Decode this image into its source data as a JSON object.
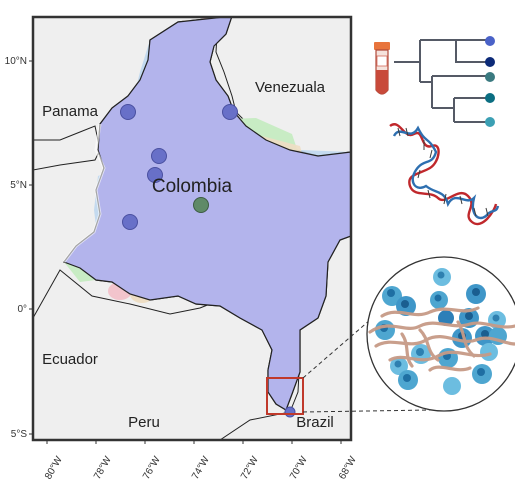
{
  "map": {
    "countries": {
      "panama": "Panama",
      "venezuela": "Venezuala",
      "colombia": "Colombia",
      "ecuador": "Ecuador",
      "peru": "Peru",
      "brazil": "Brazil"
    },
    "lat_ticks": [
      "10°N",
      "5°N",
      "0°",
      "5°S"
    ],
    "lon_ticks": [
      "80°W",
      "78°W",
      "76°W",
      "74°W",
      "72°W",
      "70°W",
      "68°W"
    ],
    "colors": {
      "ocean": "#efefef",
      "land": "#efefef",
      "colombia_base": "#b3b4ec",
      "zone_blue": "#bcd6ee",
      "zone_green": "#c8ecc4",
      "zone_tan": "#eedec4",
      "zone_pink": "#f2c4cc",
      "zone_gray": "#d6d6d6",
      "sample_point": "#6870c8",
      "sample_point_alt": "#5f8a68",
      "highlight_box": "#c0392b"
    },
    "sample_points": 6
  },
  "phylogeny": {
    "tip_colors": [
      "#4a62c8",
      "#0c2a78",
      "#3b7a80",
      "#0b6e82",
      "#3ca0b4"
    ]
  },
  "inset": {
    "label": "tissue-cells"
  }
}
